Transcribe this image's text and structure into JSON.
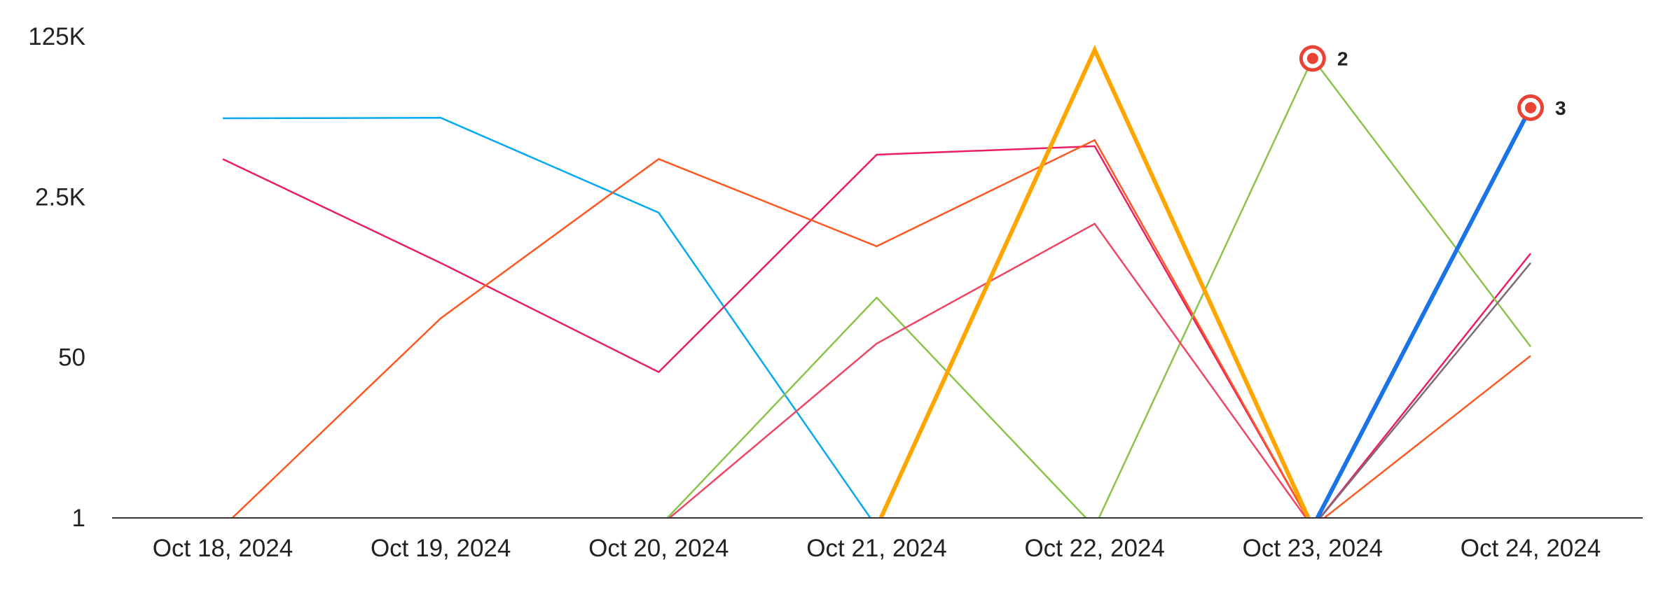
{
  "chart_data": {
    "type": "line",
    "title": "",
    "xlabel": "",
    "ylabel": "",
    "scale": "log",
    "ylim": [
      1,
      125000
    ],
    "y_ticks": [
      {
        "value": 1,
        "label": "1"
      },
      {
        "value": 50,
        "label": "50"
      },
      {
        "value": 2500,
        "label": "2.5K"
      },
      {
        "value": 125000,
        "label": "125K"
      }
    ],
    "categories": [
      "Oct 18, 2024",
      "Oct 19, 2024",
      "Oct 20, 2024",
      "Oct 21, 2024",
      "Oct 22, 2024",
      "Oct 23, 2024",
      "Oct 24, 2024"
    ],
    "grid": false,
    "legend": "none",
    "series": [
      {
        "color": "#03A9F4",
        "width": 2.5,
        "values": [
          17000,
          17200,
          1700,
          0.8,
          null,
          null,
          null
        ]
      },
      {
        "color": "#E91E63",
        "width": 2.5,
        "values": [
          6300,
          500,
          35,
          7000,
          8600,
          0.8,
          630
        ]
      },
      {
        "color": "#FF5722",
        "width": 2.5,
        "values": [
          0.8,
          130,
          6300,
          750,
          10000,
          0.8,
          52
        ]
      },
      {
        "color": "#8BC34A",
        "width": 2.5,
        "values": [
          null,
          null,
          0.8,
          215,
          0.8,
          73000,
          65
        ]
      },
      {
        "color": "#EF4564",
        "width": 2.5,
        "values": [
          null,
          null,
          0.8,
          70,
          1300,
          0.8,
          null
        ]
      },
      {
        "color": "#FFA500",
        "width": 6,
        "values": [
          null,
          null,
          null,
          0.8,
          90000,
          0.8,
          null
        ]
      },
      {
        "color": "#1A73E8",
        "width": 6,
        "values": [
          null,
          null,
          null,
          null,
          null,
          0.8,
          22000
        ]
      },
      {
        "color": "#7E6B7A",
        "width": 2.5,
        "values": [
          null,
          null,
          null,
          null,
          null,
          0.8,
          500
        ]
      }
    ],
    "markers": [
      {
        "category": "Oct 23, 2024",
        "value": 73000,
        "label": "2"
      },
      {
        "category": "Oct 24, 2024",
        "value": 22000,
        "label": "3"
      }
    ]
  }
}
